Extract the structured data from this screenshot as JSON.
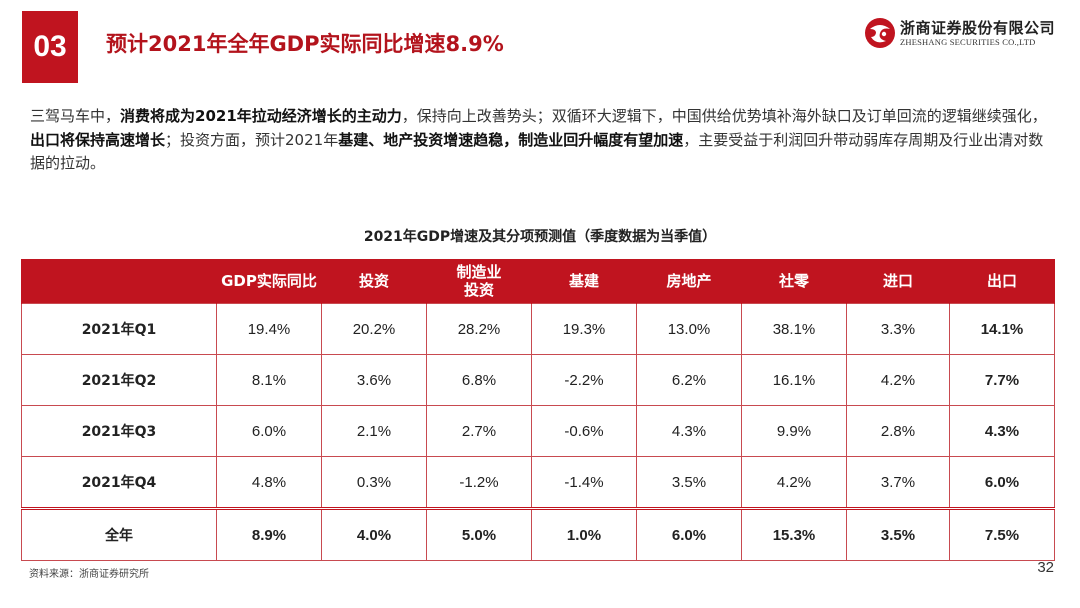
{
  "section_number": "03",
  "title": "预计2021年全年GDP实际同比增速8.9%",
  "logo": {
    "cn": "浙商证券股份有限公司",
    "en": "ZHESHANG SECURITIES CO.,LTD",
    "brand_color": "#c0141f"
  },
  "intro": [
    {
      "text": "三驾马车中，",
      "bold": false
    },
    {
      "text": "消费将成为2021年拉动经济增长的主动力",
      "bold": true
    },
    {
      "text": "，保持向上改善势头；双循环大逻辑下，中国供给优势填补海外缺口及订单回流的逻辑继续强化，",
      "bold": false
    },
    {
      "text": "出口将保持高速增长",
      "bold": true
    },
    {
      "text": "；投资方面，预计2021年",
      "bold": false
    },
    {
      "text": "基建、地产投资增速趋稳，制造业回升幅度有望加速",
      "bold": true
    },
    {
      "text": "，主要受益于利润回升带动弱库存周期及行业出清对数据的拉动。",
      "bold": false
    }
  ],
  "table": {
    "title": "2021年GDP增速及其分项预测值（季度数据为当季值）",
    "headers": [
      "",
      "GDP实际同比",
      "投资",
      "制造业\n投资",
      "基建",
      "房地产",
      "社零",
      "进口",
      "出口"
    ],
    "rows": [
      {
        "label": "2021年Q1",
        "values": [
          "19.4%",
          "20.2%",
          "28.2%",
          "19.3%",
          "13.0%",
          "38.1%",
          "3.3%",
          "14.1%"
        ]
      },
      {
        "label": "2021年Q2",
        "values": [
          "8.1%",
          "3.6%",
          "6.8%",
          "-2.2%",
          "6.2%",
          "16.1%",
          "4.2%",
          "7.7%"
        ]
      },
      {
        "label": "2021年Q3",
        "values": [
          "6.0%",
          "2.1%",
          "2.7%",
          "-0.6%",
          "4.3%",
          "9.9%",
          "2.8%",
          "4.3%"
        ]
      },
      {
        "label": "2021年Q4",
        "values": [
          "4.8%",
          "0.3%",
          "-1.2%",
          "-1.4%",
          "3.5%",
          "4.2%",
          "3.7%",
          "6.0%"
        ]
      }
    ],
    "total": {
      "label": "全年",
      "values": [
        "8.9%",
        "4.0%",
        "5.0%",
        "1.0%",
        "6.0%",
        "15.3%",
        "3.5%",
        "7.5%"
      ]
    }
  },
  "source": "资料来源：浙商证券研究所",
  "page_number": "32"
}
